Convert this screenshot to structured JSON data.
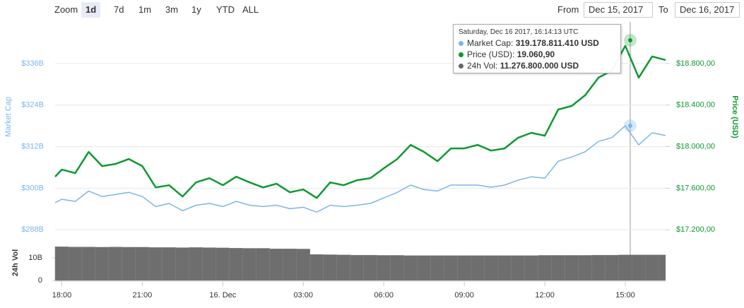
{
  "zoom": {
    "label": "Zoom",
    "buttons": [
      "1d",
      "7d",
      "1m",
      "3m",
      "1y",
      "YTD",
      "ALL"
    ],
    "selected": "1d"
  },
  "range": {
    "from_label": "From",
    "from": "Dec 15, 2017",
    "to_label": "To",
    "to": "Dec 16, 2017"
  },
  "tooltip": {
    "title": "Saturday, Dec 16 2017, 16:14:13 UTC",
    "rows": [
      {
        "label": "Market Cap:",
        "value": "319.178.811.410 USD",
        "color": "#7cb5ec"
      },
      {
        "label": "Price (USD):",
        "value": "19.060,90",
        "color": "#0d9930"
      },
      {
        "label": "24h Vol:",
        "value": "11.276.800.000 USD",
        "color": "#666666"
      }
    ]
  },
  "chart_data": [
    {
      "type": "line",
      "x": [
        17.75,
        18,
        18.5,
        19,
        19.5,
        20,
        20.5,
        21,
        21.5,
        22,
        22.5,
        23,
        23.5,
        24,
        24.5,
        25,
        25.5,
        26,
        26.5,
        27,
        27.5,
        28,
        28.5,
        29,
        29.5,
        30,
        30.5,
        31,
        31.5,
        32,
        32.5,
        33,
        33.5,
        34,
        34.5,
        35,
        35.5,
        36,
        36.5,
        37,
        37.5,
        38,
        38.5,
        39,
        39.5,
        40,
        40.5
      ],
      "xlim": [
        17.75,
        40.5
      ],
      "series": [
        {
          "name": "Market Cap",
          "color": "#7cb5ec",
          "axis": "y",
          "values": [
            295.8,
            296.8,
            296.2,
            299.2,
            297.6,
            298.2,
            298.8,
            297.6,
            294.7,
            295.6,
            293.5,
            295.1,
            295.6,
            294.7,
            296.2,
            295.1,
            294.7,
            295.1,
            294.1,
            294.5,
            293.1,
            295.1,
            294.7,
            295.1,
            295.6,
            297.2,
            298.8,
            300.9,
            299.6,
            299.2,
            300.9,
            300.9,
            300.9,
            300.3,
            300.9,
            302.3,
            303.3,
            302.9,
            307.8,
            309.0,
            310.5,
            313.5,
            314.6,
            318.0,
            312.5,
            316.0,
            315.2
          ]
        },
        {
          "name": "Price (USD)",
          "color": "#0d9930",
          "axis": "y2",
          "values": [
            17711,
            17779,
            17745,
            17949,
            17813,
            17833,
            17881,
            17813,
            17608,
            17629,
            17520,
            17656,
            17697,
            17629,
            17711,
            17656,
            17608,
            17643,
            17561,
            17588,
            17506,
            17656,
            17629,
            17677,
            17697,
            17792,
            17881,
            18017,
            17949,
            17860,
            17983,
            17983,
            18017,
            17962,
            17983,
            18085,
            18133,
            18105,
            18357,
            18391,
            18494,
            18664,
            18732,
            18970,
            18664,
            18868,
            18834
          ]
        }
      ],
      "ylim": [
        285,
        348
      ],
      "yticks": [
        {
          "value": 288,
          "label": "$288B"
        },
        {
          "value": 300,
          "label": "$300B"
        },
        {
          "value": 312,
          "label": "$312B"
        },
        {
          "value": 324,
          "label": "$324B"
        },
        {
          "value": 336,
          "label": "$336B"
        }
      ],
      "y2lim": [
        17100,
        19200
      ],
      "y2ticks": [
        {
          "value": 17200,
          "label": "$17.200,00"
        },
        {
          "value": 17600,
          "label": "$17.600,00"
        },
        {
          "value": 18000,
          "label": "$18.000,00"
        },
        {
          "value": 18400,
          "label": "$18.400,00"
        },
        {
          "value": 18800,
          "label": "$18.800,00"
        }
      ],
      "grid": true
    },
    {
      "type": "bar",
      "ylabel": "24h Vol",
      "x": [
        17.75,
        18,
        18.5,
        19,
        19.5,
        20,
        20.5,
        21,
        21.5,
        22,
        22.5,
        23,
        23.5,
        24,
        24.5,
        25,
        25.5,
        26,
        26.5,
        27,
        27.5,
        28,
        28.5,
        29,
        29.5,
        30,
        30.5,
        31,
        31.5,
        32,
        32.5,
        33,
        33.5,
        34,
        34.5,
        35,
        35.5,
        36,
        36.5,
        37,
        37.5,
        38,
        38.5,
        39,
        39.5,
        40,
        40.5
      ],
      "values": [
        14.9,
        14.9,
        14.8,
        14.8,
        14.7,
        14.8,
        14.7,
        14.7,
        14.6,
        14.6,
        14.5,
        14.6,
        14.5,
        14.4,
        14.3,
        14.2,
        14.2,
        14.0,
        14.0,
        13.9,
        11.5,
        11.4,
        11.3,
        11.2,
        11.2,
        11.1,
        11.1,
        11.0,
        11.0,
        11.0,
        11.0,
        11.0,
        11.0,
        11.0,
        11.0,
        11.0,
        11.0,
        11.1,
        11.1,
        11.1,
        11.1,
        11.2,
        11.2,
        11.3,
        11.3,
        11.3,
        11.3
      ],
      "color": "#6e6e6e",
      "xlim": [
        17.75,
        40.5
      ],
      "xticks": [
        {
          "value": 18,
          "label": "18:00"
        },
        {
          "value": 21,
          "label": "21:00"
        },
        {
          "value": 24,
          "label": "16. Dec"
        },
        {
          "value": 27,
          "label": "03:00"
        },
        {
          "value": 30,
          "label": "06:00"
        },
        {
          "value": 33,
          "label": "09:00"
        },
        {
          "value": 36,
          "label": "12:00"
        },
        {
          "value": 39,
          "label": "15:00"
        }
      ],
      "ylim": [
        0,
        15.6
      ],
      "yticks": [
        0,
        {
          "value": 10,
          "label": "10B"
        }
      ]
    }
  ]
}
